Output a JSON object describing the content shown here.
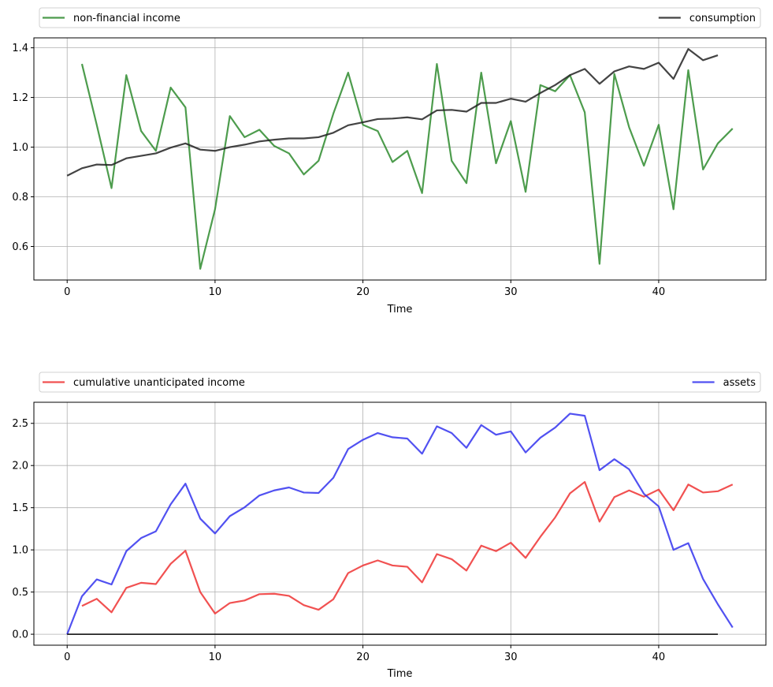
{
  "chart_data": [
    {
      "type": "line",
      "xlabel": "Time",
      "ylabel": "",
      "xlim": [
        -2.25,
        47.25
      ],
      "ylim": [
        0.465,
        1.44
      ],
      "grid": true,
      "xticks": [
        0,
        10,
        20,
        30,
        40
      ],
      "yticks": [
        0.6,
        0.8,
        1.0,
        1.2,
        1.4
      ],
      "ytick_labels": [
        "0.6",
        "0.8",
        "1.0",
        "1.2",
        "1.4"
      ],
      "legend_placement": "above, spanning full width",
      "series": [
        {
          "name": "non-financial income",
          "color": "#2e8b2e",
          "x": [
            1,
            2,
            3,
            4,
            5,
            6,
            7,
            8,
            9,
            10,
            11,
            12,
            13,
            14,
            15,
            16,
            17,
            18,
            19,
            20,
            21,
            22,
            23,
            24,
            25,
            26,
            27,
            28,
            29,
            30,
            31,
            32,
            33,
            34,
            35,
            36,
            37,
            38,
            39,
            40,
            41,
            42,
            43,
            44,
            45
          ],
          "y": [
            1.335,
            1.09,
            0.835,
            1.29,
            1.065,
            0.985,
            1.24,
            1.16,
            0.51,
            0.75,
            1.125,
            1.04,
            1.07,
            1.005,
            0.975,
            0.89,
            0.945,
            1.135,
            1.3,
            1.09,
            1.065,
            0.94,
            0.985,
            0.815,
            1.335,
            0.945,
            0.855,
            1.3,
            0.935,
            1.105,
            0.82,
            1.25,
            1.225,
            1.29,
            1.14,
            0.53,
            1.295,
            1.08,
            0.925,
            1.09,
            0.75,
            1.31,
            0.91,
            1.015,
            1.075
          ]
        },
        {
          "name": "consumption",
          "color": "#222222",
          "x": [
            0,
            1,
            2,
            3,
            4,
            5,
            6,
            7,
            8,
            9,
            10,
            11,
            12,
            13,
            14,
            15,
            16,
            17,
            18,
            19,
            20,
            21,
            22,
            23,
            24,
            25,
            26,
            27,
            28,
            29,
            30,
            31,
            32,
            33,
            34,
            35,
            36,
            37,
            38,
            39,
            40,
            41,
            42,
            43,
            44
          ],
          "y": [
            0.885,
            0.915,
            0.93,
            0.928,
            0.955,
            0.965,
            0.975,
            0.998,
            1.015,
            0.99,
            0.985,
            1.0,
            1.01,
            1.023,
            1.03,
            1.035,
            1.035,
            1.04,
            1.058,
            1.088,
            1.1,
            1.113,
            1.115,
            1.12,
            1.112,
            1.148,
            1.15,
            1.143,
            1.178,
            1.178,
            1.195,
            1.183,
            1.218,
            1.25,
            1.29,
            1.315,
            1.255,
            1.305,
            1.325,
            1.315,
            1.34,
            1.275,
            1.395,
            1.35,
            1.37
          ]
        }
      ]
    },
    {
      "type": "line",
      "xlabel": "Time",
      "ylabel": "",
      "xlim": [
        -2.25,
        47.25
      ],
      "ylim": [
        -0.13,
        2.75
      ],
      "grid": true,
      "xticks": [
        0,
        10,
        20,
        30,
        40
      ],
      "yticks": [
        0.0,
        0.5,
        1.0,
        1.5,
        2.0,
        2.5
      ],
      "ytick_labels": [
        "0.0",
        "0.5",
        "1.0",
        "1.5",
        "2.0",
        "2.5"
      ],
      "legend_placement": "above, spanning full width",
      "series": [
        {
          "name": "cumulative unanticipated income",
          "color": "#ee3333",
          "x": [
            1,
            2,
            3,
            4,
            5,
            6,
            7,
            8,
            9,
            10,
            11,
            12,
            13,
            14,
            15,
            16,
            17,
            18,
            19,
            20,
            21,
            22,
            23,
            24,
            25,
            26,
            27,
            28,
            29,
            30,
            31,
            32,
            33,
            34,
            35,
            36,
            37,
            38,
            39,
            40,
            41,
            42,
            43,
            44,
            45
          ],
          "y": [
            0.335,
            0.42,
            0.26,
            0.55,
            0.61,
            0.595,
            0.835,
            0.99,
            0.5,
            0.245,
            0.37,
            0.4,
            0.475,
            0.48,
            0.455,
            0.345,
            0.29,
            0.415,
            0.725,
            0.815,
            0.875,
            0.815,
            0.8,
            0.615,
            0.95,
            0.89,
            0.755,
            1.05,
            0.985,
            1.085,
            0.905,
            1.155,
            1.385,
            1.67,
            1.805,
            1.335,
            1.625,
            1.705,
            1.63,
            1.715,
            1.47,
            1.775,
            1.68,
            1.695,
            1.775
          ]
        },
        {
          "name": "assets",
          "color": "#3333ee",
          "x": [
            0,
            1,
            2,
            3,
            4,
            5,
            6,
            7,
            8,
            9,
            10,
            11,
            12,
            13,
            14,
            15,
            16,
            17,
            18,
            19,
            20,
            21,
            22,
            23,
            24,
            25,
            26,
            27,
            28,
            29,
            30,
            31,
            32,
            33,
            34,
            35,
            36,
            37,
            38,
            39,
            40,
            41,
            42,
            43,
            44,
            45
          ],
          "y": [
            0.0,
            0.45,
            0.65,
            0.59,
            0.985,
            1.14,
            1.22,
            1.54,
            1.785,
            1.37,
            1.195,
            1.4,
            1.505,
            1.645,
            1.705,
            1.74,
            1.68,
            1.675,
            1.855,
            2.195,
            2.305,
            2.385,
            2.335,
            2.32,
            2.14,
            2.465,
            2.385,
            2.21,
            2.48,
            2.365,
            2.405,
            2.155,
            2.33,
            2.45,
            2.615,
            2.59,
            1.945,
            2.075,
            1.955,
            1.665,
            1.515,
            1.0,
            1.08,
            0.655,
            0.355,
            0.08
          ]
        },
        {
          "name": "",
          "color": "#000000",
          "x": [
            0,
            44
          ],
          "y": [
            0.0,
            0.0
          ]
        }
      ]
    }
  ]
}
